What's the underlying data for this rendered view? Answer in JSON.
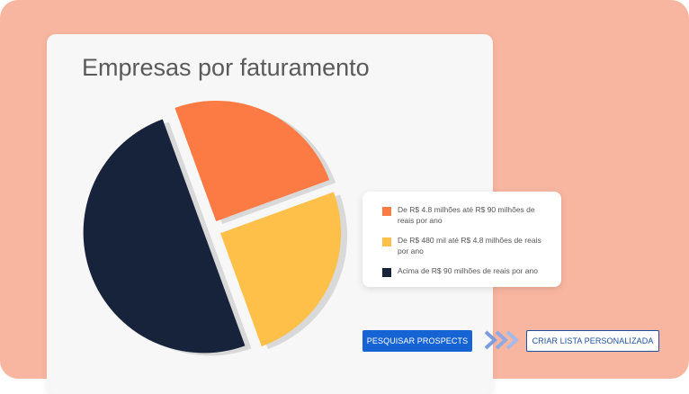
{
  "title": "Empresas por faturamento",
  "chart_data": {
    "type": "pie",
    "title": "Empresas por faturamento",
    "slices": [
      {
        "label": "De R$ 4.8 milhões até R$ 90 milhões de reais por ano",
        "value": 25,
        "color": "#fc7a43"
      },
      {
        "label": "De R$ 480 mil até R$ 4.8 milhões de reais por ano",
        "value": 25,
        "color": "#ffc04a"
      },
      {
        "label": "Acima de R$ 90 milhões de reais por ano",
        "value": 50,
        "color": "#16233b"
      }
    ],
    "legend_position": "right"
  },
  "legend": {
    "items": [
      {
        "label": "De R$ 4.8 milhões até R$ 90 milhões de reais por ano",
        "color": "#fc7a43"
      },
      {
        "label": "De R$ 480 mil até R$ 4.8 milhões de reais por ano",
        "color": "#ffc04a"
      },
      {
        "label": "Acima de R$ 90 milhões de reais por ano",
        "color": "#16233b"
      }
    ]
  },
  "buttons": {
    "search_prospects": "PESQUISAR PROSPECTS",
    "create_list": "CRIAR LISTA PERSONALIZADA"
  },
  "icons": {
    "flow_arrows": "double-chevron-right-icon"
  },
  "colors": {
    "background": "#f8b6a0",
    "primary": "#1663d4",
    "slice_gap": "#d9d9d9"
  }
}
